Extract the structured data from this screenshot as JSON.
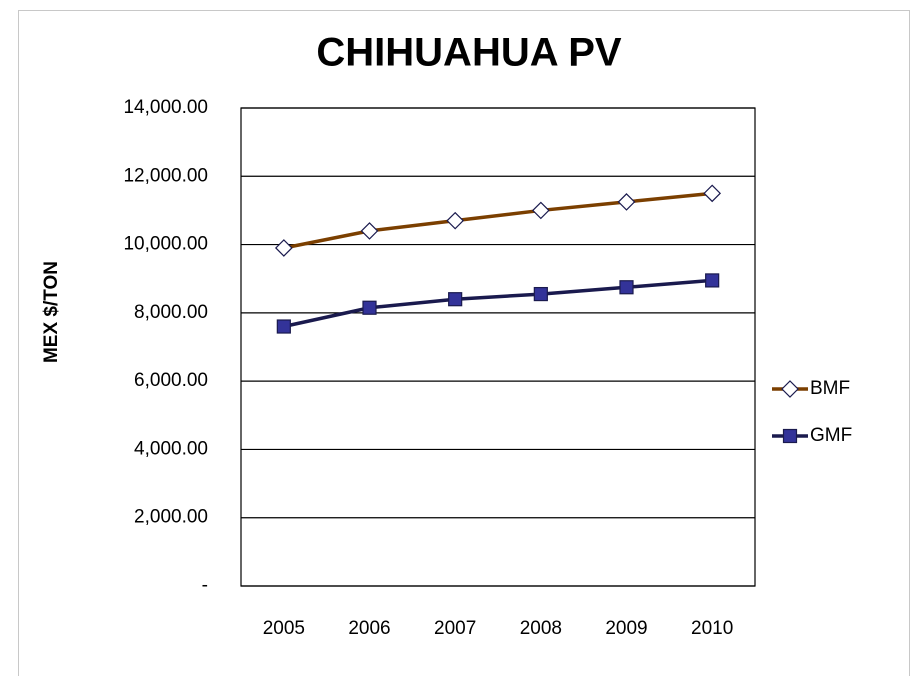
{
  "chart_data": {
    "type": "line",
    "title": "CHIHUAHUA PV",
    "y_label": "MEX $/TON",
    "categories": [
      "2005",
      "2006",
      "2007",
      "2008",
      "2009",
      "2010"
    ],
    "series": [
      {
        "name": "BMF",
        "color": "#7b3f00",
        "marker": "diamond",
        "marker_fill": "#ffffff",
        "marker_stroke": "#1a1a4e",
        "values": [
          9900,
          10400,
          10700,
          11000,
          11250,
          11500
        ]
      },
      {
        "name": "GMF",
        "color": "#1a1a4e",
        "marker": "square",
        "marker_fill": "#333399",
        "marker_stroke": "#1a1a4e",
        "values": [
          7600,
          8150,
          8400,
          8550,
          8750,
          8950
        ]
      }
    ],
    "ylim": [
      0,
      14000
    ],
    "yticks": [
      {
        "value": 0,
        "label": "-"
      },
      {
        "value": 2000,
        "label": "2,000.00"
      },
      {
        "value": 4000,
        "label": "4,000.00"
      },
      {
        "value": 6000,
        "label": "6,000.00"
      },
      {
        "value": 8000,
        "label": "8,000.00"
      },
      {
        "value": 10000,
        "label": "10,000.00"
      },
      {
        "value": 12000,
        "label": "12,000.00"
      },
      {
        "value": 14000,
        "label": "14,000.00"
      }
    ],
    "grid": true,
    "legend": "right"
  }
}
